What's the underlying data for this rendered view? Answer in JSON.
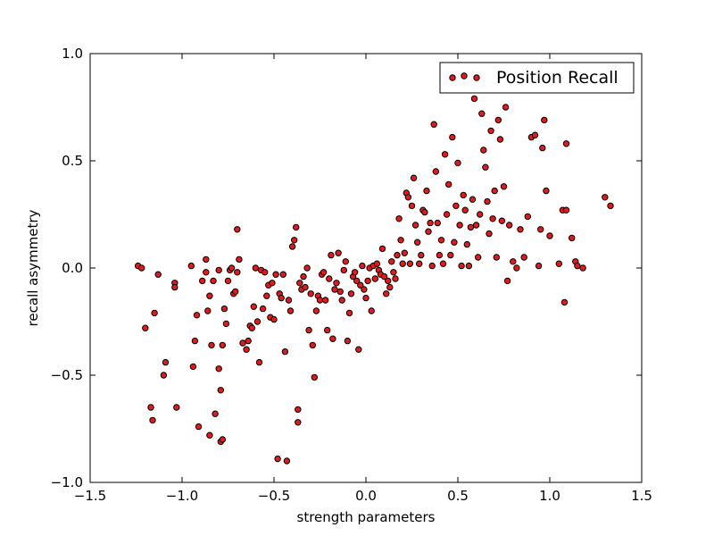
{
  "chart_data": {
    "type": "scatter",
    "title": "",
    "xlabel": "strength parameters",
    "ylabel": "recall asymmetry",
    "xlim": [
      -1.5,
      1.5
    ],
    "ylim": [
      -1.0,
      1.0
    ],
    "xticks": [
      -1.5,
      -1.0,
      -0.5,
      0.0,
      0.5,
      1.0,
      1.5
    ],
    "yticks": [
      -1.0,
      -0.5,
      0.0,
      0.5,
      1.0
    ],
    "xtick_labels": [
      "−1.5",
      "−1.0",
      "−0.5",
      "0.0",
      "0.5",
      "1.0",
      "1.5"
    ],
    "ytick_labels": [
      "−1.0",
      "−0.5",
      "0.0",
      "0.5",
      "1.0"
    ],
    "grid": false,
    "legend": {
      "position": "upper right"
    },
    "series": [
      {
        "name": "Position Recall",
        "color": "#e31a1c",
        "edgecolor": "#000000",
        "points": [
          [
            -1.24,
            0.01
          ],
          [
            -1.22,
            0.0
          ],
          [
            -1.2,
            -0.28
          ],
          [
            -1.17,
            -0.65
          ],
          [
            -1.16,
            -0.71
          ],
          [
            -1.15,
            -0.21
          ],
          [
            -1.13,
            -0.03
          ],
          [
            -1.1,
            -0.5
          ],
          [
            -1.09,
            -0.44
          ],
          [
            -1.04,
            -0.07
          ],
          [
            -1.04,
            -0.09
          ],
          [
            -1.03,
            -0.65
          ],
          [
            -0.95,
            0.01
          ],
          [
            -0.94,
            -0.46
          ],
          [
            -0.93,
            -0.34
          ],
          [
            -0.92,
            -0.22
          ],
          [
            -0.91,
            -0.74
          ],
          [
            -0.89,
            -0.06
          ],
          [
            -0.87,
            -0.02
          ],
          [
            -0.87,
            0.04
          ],
          [
            -0.86,
            -0.2
          ],
          [
            -0.85,
            -0.78
          ],
          [
            -0.85,
            -0.13
          ],
          [
            -0.84,
            -0.36
          ],
          [
            -0.83,
            -0.06
          ],
          [
            -0.82,
            -0.68
          ],
          [
            -0.8,
            -0.47
          ],
          [
            -0.8,
            -0.01
          ],
          [
            -0.79,
            -0.81
          ],
          [
            -0.79,
            -0.57
          ],
          [
            -0.78,
            -0.8
          ],
          [
            -0.78,
            -0.36
          ],
          [
            -0.77,
            -0.19
          ],
          [
            -0.76,
            -0.26
          ],
          [
            -0.75,
            -0.06
          ],
          [
            -0.74,
            -0.01
          ],
          [
            -0.73,
            0.0
          ],
          [
            -0.72,
            -0.12
          ],
          [
            -0.71,
            -0.11
          ],
          [
            -0.7,
            -0.02
          ],
          [
            -0.7,
            0.18
          ],
          [
            -0.69,
            0.04
          ],
          [
            -0.67,
            -0.35
          ],
          [
            -0.65,
            -0.38
          ],
          [
            -0.64,
            -0.34
          ],
          [
            -0.63,
            -0.27
          ],
          [
            -0.62,
            -0.28
          ],
          [
            -0.61,
            -0.18
          ],
          [
            -0.6,
            -0.0
          ],
          [
            -0.59,
            -0.25
          ],
          [
            -0.58,
            -0.44
          ],
          [
            -0.57,
            -0.01
          ],
          [
            -0.56,
            -0.19
          ],
          [
            -0.55,
            -0.02
          ],
          [
            -0.54,
            -0.13
          ],
          [
            -0.53,
            -0.08
          ],
          [
            -0.52,
            -0.23
          ],
          [
            -0.51,
            -0.07
          ],
          [
            -0.5,
            -0.24
          ],
          [
            -0.49,
            -0.03
          ],
          [
            -0.48,
            -0.89
          ],
          [
            -0.47,
            -0.12
          ],
          [
            -0.46,
            -0.14
          ],
          [
            -0.45,
            -0.03
          ],
          [
            -0.44,
            -0.39
          ],
          [
            -0.43,
            -0.9
          ],
          [
            -0.42,
            -0.15
          ],
          [
            -0.41,
            -0.2
          ],
          [
            -0.4,
            0.1
          ],
          [
            -0.39,
            0.13
          ],
          [
            -0.38,
            0.19
          ],
          [
            -0.37,
            -0.66
          ],
          [
            -0.37,
            -0.72
          ],
          [
            -0.36,
            -0.07
          ],
          [
            -0.35,
            -0.1
          ],
          [
            -0.34,
            -0.04
          ],
          [
            -0.33,
            -0.09
          ],
          [
            -0.32,
            -0.0
          ],
          [
            -0.31,
            -0.29
          ],
          [
            -0.3,
            -0.12
          ],
          [
            -0.29,
            -0.36
          ],
          [
            -0.28,
            -0.51
          ],
          [
            -0.27,
            -0.2
          ],
          [
            -0.26,
            -0.13
          ],
          [
            -0.25,
            -0.15
          ],
          [
            -0.24,
            -0.03
          ],
          [
            -0.23,
            -0.02
          ],
          [
            -0.22,
            -0.15
          ],
          [
            -0.21,
            -0.29
          ],
          [
            -0.2,
            -0.05
          ],
          [
            -0.19,
            0.06
          ],
          [
            -0.18,
            -0.33
          ],
          [
            -0.17,
            -0.1
          ],
          [
            -0.16,
            -0.07
          ],
          [
            -0.15,
            0.07
          ],
          [
            -0.14,
            -0.11
          ],
          [
            -0.13,
            -0.15
          ],
          [
            -0.12,
            -0.01
          ],
          [
            -0.11,
            0.03
          ],
          [
            -0.1,
            -0.34
          ],
          [
            -0.09,
            -0.21
          ],
          [
            -0.08,
            -0.12
          ],
          [
            -0.07,
            -0.04
          ],
          [
            -0.06,
            -0.02
          ],
          [
            -0.05,
            -0.06
          ],
          [
            -0.04,
            -0.38
          ],
          [
            -0.03,
            -0.08
          ],
          [
            -0.02,
            0.01
          ],
          [
            -0.01,
            -0.1
          ],
          [
            0.0,
            -0.14
          ],
          [
            0.01,
            -0.06
          ],
          [
            0.02,
            0.0
          ],
          [
            0.03,
            -0.2
          ],
          [
            0.04,
            0.01
          ],
          [
            0.05,
            -0.05
          ],
          [
            0.06,
            0.02
          ],
          [
            0.07,
            -0.01
          ],
          [
            0.08,
            -0.03
          ],
          [
            0.09,
            0.09
          ],
          [
            0.1,
            -0.04
          ],
          [
            0.11,
            -0.12
          ],
          [
            0.12,
            -0.06
          ],
          [
            0.13,
            -0.09
          ],
          [
            0.14,
            0.03
          ],
          [
            0.15,
            -0.02
          ],
          [
            0.16,
            -0.05
          ],
          [
            0.17,
            0.06
          ],
          [
            0.18,
            0.23
          ],
          [
            0.19,
            0.13
          ],
          [
            0.2,
            0.02
          ],
          [
            0.21,
            0.07
          ],
          [
            0.22,
            0.35
          ],
          [
            0.23,
            0.33
          ],
          [
            0.24,
            0.02
          ],
          [
            0.25,
            0.29
          ],
          [
            0.26,
            0.42
          ],
          [
            0.27,
            0.2
          ],
          [
            0.28,
            0.12
          ],
          [
            0.29,
            0.02
          ],
          [
            0.3,
            0.06
          ],
          [
            0.31,
            0.27
          ],
          [
            0.32,
            0.26
          ],
          [
            0.33,
            0.36
          ],
          [
            0.34,
            0.17
          ],
          [
            0.35,
            0.21
          ],
          [
            0.36,
            0.01
          ],
          [
            0.37,
            0.67
          ],
          [
            0.38,
            0.45
          ],
          [
            0.39,
            0.21
          ],
          [
            0.4,
            0.06
          ],
          [
            0.41,
            0.13
          ],
          [
            0.42,
            0.02
          ],
          [
            0.43,
            0.53
          ],
          [
            0.44,
            0.25
          ],
          [
            0.45,
            0.39
          ],
          [
            0.46,
            0.06
          ],
          [
            0.47,
            0.61
          ],
          [
            0.48,
            0.12
          ],
          [
            0.49,
            0.29
          ],
          [
            0.5,
            0.49
          ],
          [
            0.51,
            0.2
          ],
          [
            0.52,
            0.01
          ],
          [
            0.53,
            0.34
          ],
          [
            0.54,
            0.27
          ],
          [
            0.55,
            0.11
          ],
          [
            0.56,
            0.01
          ],
          [
            0.57,
            0.19
          ],
          [
            0.58,
            0.32
          ],
          [
            0.59,
            0.79
          ],
          [
            0.6,
            0.2
          ],
          [
            0.61,
            0.05
          ],
          [
            0.62,
            0.25
          ],
          [
            0.63,
            0.72
          ],
          [
            0.64,
            0.55
          ],
          [
            0.65,
            0.47
          ],
          [
            0.66,
            0.31
          ],
          [
            0.67,
            0.16
          ],
          [
            0.68,
            0.64
          ],
          [
            0.69,
            0.23
          ],
          [
            0.7,
            0.36
          ],
          [
            0.71,
            0.05
          ],
          [
            0.72,
            0.69
          ],
          [
            0.73,
            0.6
          ],
          [
            0.74,
            0.22
          ],
          [
            0.75,
            0.38
          ],
          [
            0.76,
            0.75
          ],
          [
            0.77,
            -0.06
          ],
          [
            0.78,
            0.2
          ],
          [
            0.8,
            0.03
          ],
          [
            0.82,
            0.0
          ],
          [
            0.84,
            0.18
          ],
          [
            0.86,
            0.05
          ],
          [
            0.88,
            0.24
          ],
          [
            0.9,
            0.61
          ],
          [
            0.92,
            0.62
          ],
          [
            0.94,
            0.01
          ],
          [
            0.95,
            0.18
          ],
          [
            0.96,
            0.56
          ],
          [
            0.97,
            0.69
          ],
          [
            0.98,
            0.36
          ],
          [
            1.0,
            0.15
          ],
          [
            1.05,
            0.02
          ],
          [
            1.07,
            0.27
          ],
          [
            1.08,
            -0.16
          ],
          [
            1.09,
            0.58
          ],
          [
            1.09,
            0.27
          ],
          [
            1.12,
            0.14
          ],
          [
            1.14,
            0.03
          ],
          [
            1.15,
            0.01
          ],
          [
            1.18,
            0.0
          ],
          [
            1.3,
            0.33
          ],
          [
            1.33,
            0.29
          ]
        ]
      }
    ]
  }
}
